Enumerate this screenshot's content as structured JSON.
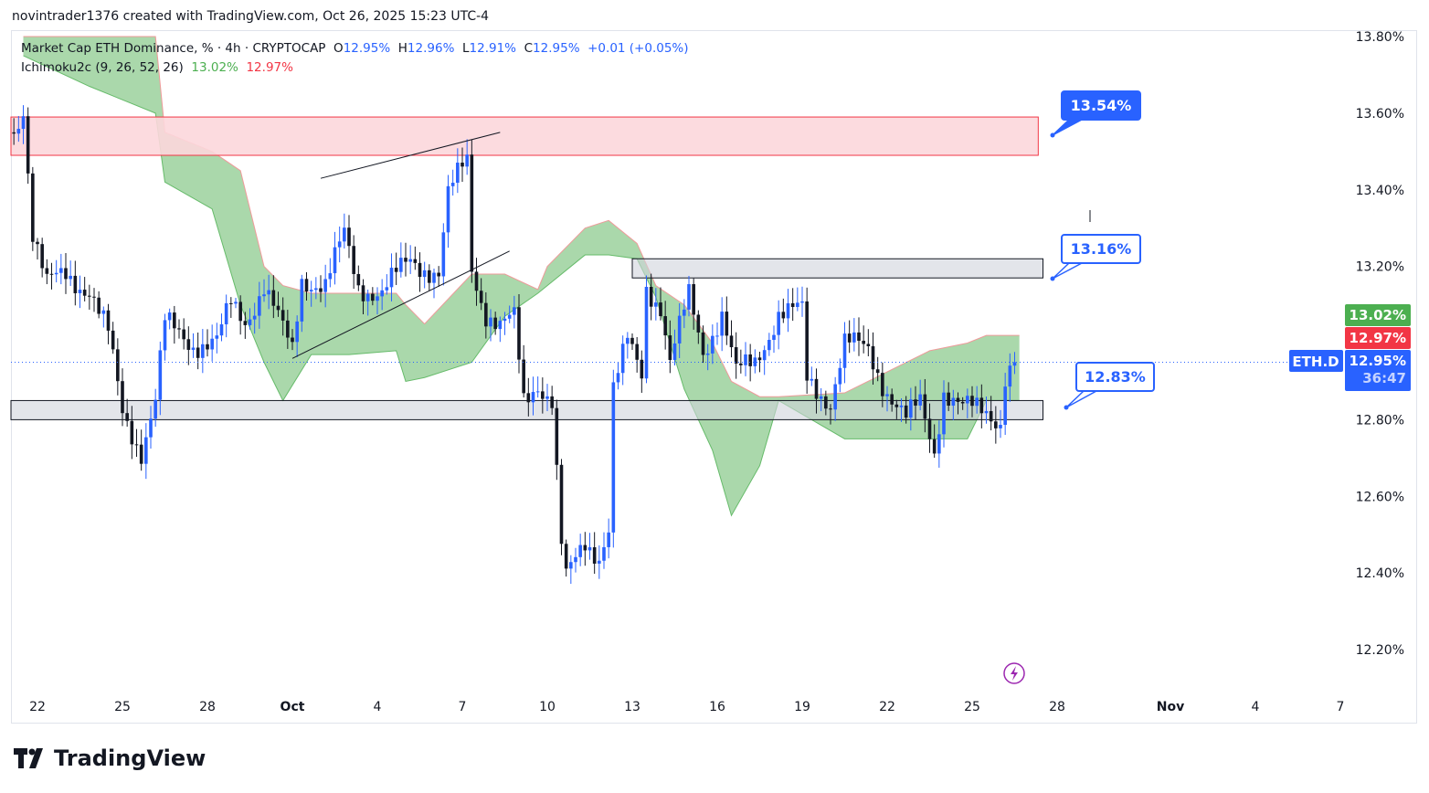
{
  "credit": "novintrader1376 created with TradingView.com, Oct 26, 2025 15:23 UTC-4",
  "legend": {
    "symbol": "Market Cap ETH Dominance, % · 4h · CRYPTOCAP",
    "o_label": "O",
    "o": "12.95%",
    "h_label": "H",
    "h": "12.96%",
    "l_label": "L",
    "l": "12.91%",
    "c_label": "C",
    "c": "12.95%",
    "change": "+0.01 (+0.05%)",
    "indicator": "Ichimoku2c (9, 26, 52, 26)",
    "ind_a": "13.02%",
    "ind_b": "12.97%"
  },
  "price_tags": {
    "span_a": "13.02%",
    "span_b": "12.97%",
    "symbol": "ETH.D",
    "last": "12.95%",
    "countdown": "36:47"
  },
  "callouts": [
    "13.54%",
    "13.16%",
    "12.83%"
  ],
  "brand": "TradingView",
  "colors": {
    "up": "#2962ff",
    "down": "#131722",
    "cloud": "#a5d6a7",
    "span_a": "#4caf50",
    "span_b": "#f23645",
    "zone_red": "#fcd7dc",
    "zone_grey": "#d1d4dc"
  },
  "chart_data": {
    "type": "candlestick",
    "interval": "4h",
    "y_ticks": [
      "13.80%",
      "13.60%",
      "13.40%",
      "13.20%",
      "12.80%",
      "12.60%",
      "12.40%",
      "12.20%"
    ],
    "x_ticks": [
      "22",
      "25",
      "28",
      "Oct",
      "4",
      "7",
      "10",
      "13",
      "16",
      "19",
      "22",
      "25",
      "28",
      "Nov",
      "4",
      "7"
    ],
    "ylim": [
      12.1,
      13.82
    ],
    "price_path": [
      [
        "2025-09-21T04",
        13.55
      ],
      [
        "2025-09-21T12",
        13.62
      ],
      [
        "2025-09-21T20",
        13.29
      ],
      [
        "2025-09-22T08",
        13.15
      ],
      [
        "2025-09-23T00",
        13.18
      ],
      [
        "2025-09-23T20",
        13.14
      ],
      [
        "2025-09-24T12",
        13.02
      ],
      [
        "2025-09-25T00",
        12.82
      ],
      [
        "2025-09-25T16",
        12.72
      ],
      [
        "2025-09-26T04",
        12.85
      ],
      [
        "2025-09-26T12",
        13.05
      ],
      [
        "2025-09-27T12",
        13.0
      ],
      [
        "2025-09-28T08",
        13.0
      ],
      [
        "2025-09-28T20",
        13.1
      ],
      [
        "2025-09-29T08",
        13.06
      ],
      [
        "2025-09-30T00",
        13.15
      ],
      [
        "2025-09-30T16",
        13.03
      ],
      [
        "2025-10-01T00",
        12.98
      ],
      [
        "2025-10-01T08",
        13.17
      ],
      [
        "2025-10-02T04",
        13.15
      ],
      [
        "2025-10-02T20",
        13.28
      ],
      [
        "2025-10-03T08",
        13.15
      ],
      [
        "2025-10-04T04",
        13.13
      ],
      [
        "2025-10-05T04",
        13.22
      ],
      [
        "2025-10-06T04",
        13.18
      ],
      [
        "2025-10-06T12",
        13.38
      ],
      [
        "2025-10-07T00",
        13.46
      ],
      [
        "2025-10-07T04",
        13.48
      ],
      [
        "2025-10-07T08",
        13.2
      ],
      [
        "2025-10-07T20",
        13.08
      ],
      [
        "2025-10-08T08",
        13.04
      ],
      [
        "2025-10-08T20",
        13.06
      ],
      [
        "2025-10-09T04",
        12.85
      ],
      [
        "2025-10-09T16",
        12.9
      ],
      [
        "2025-10-10T04",
        12.85
      ],
      [
        "2025-10-10T12",
        12.47
      ],
      [
        "2025-10-10T16",
        12.38
      ],
      [
        "2025-10-11T08",
        12.48
      ],
      [
        "2025-10-11T20",
        12.45
      ],
      [
        "2025-10-12T04",
        12.52
      ],
      [
        "2025-10-12T08",
        12.88
      ],
      [
        "2025-10-12T20",
        13.0
      ],
      [
        "2025-10-13T08",
        12.92
      ],
      [
        "2025-10-13T12",
        13.15
      ],
      [
        "2025-10-14T00",
        13.1
      ],
      [
        "2025-10-14T08",
        12.95
      ],
      [
        "2025-10-15T00",
        13.12
      ],
      [
        "2025-10-15T12",
        12.98
      ],
      [
        "2025-10-16T04",
        13.08
      ],
      [
        "2025-10-16T16",
        12.92
      ],
      [
        "2025-10-17T08",
        12.95
      ],
      [
        "2025-10-18T04",
        13.08
      ],
      [
        "2025-10-19T00",
        13.08
      ],
      [
        "2025-10-19T04",
        12.9
      ],
      [
        "2025-10-20T00",
        12.85
      ],
      [
        "2025-10-20T12",
        13.0
      ],
      [
        "2025-10-21T08",
        12.98
      ],
      [
        "2025-10-21T20",
        12.9
      ],
      [
        "2025-10-22T16",
        12.8
      ],
      [
        "2025-10-23T04",
        12.84
      ],
      [
        "2025-10-23T16",
        12.72
      ],
      [
        "2025-10-24T00",
        12.88
      ],
      [
        "2025-10-24T16",
        12.83
      ],
      [
        "2025-10-25T12",
        12.82
      ],
      [
        "2025-10-26T00",
        12.8
      ],
      [
        "2025-10-26T04",
        12.92
      ],
      [
        "2025-10-26T12",
        12.95
      ]
    ],
    "cloud": [
      [
        "2025-09-21T12",
        13.8,
        13.75
      ],
      [
        "2025-09-23T20",
        13.8,
        13.67
      ],
      [
        "2025-09-26T04",
        13.8,
        13.6
      ],
      [
        "2025-09-26T12",
        13.55,
        13.42
      ],
      [
        "2025-09-28T04",
        13.5,
        13.35
      ],
      [
        "2025-09-29T04",
        13.45,
        13.1
      ],
      [
        "2025-09-30T00",
        13.2,
        12.95
      ],
      [
        "2025-09-30T16",
        13.15,
        12.85
      ],
      [
        "2025-10-01T16",
        13.13,
        12.97
      ],
      [
        "2025-10-03T00",
        13.13,
        12.97
      ],
      [
        "2025-10-04T16",
        13.13,
        12.98
      ],
      [
        "2025-10-05T00",
        13.1,
        12.9
      ],
      [
        "2025-10-05T16",
        13.05,
        12.91
      ],
      [
        "2025-10-07T08",
        13.18,
        12.95
      ],
      [
        "2025-10-08T12",
        13.18,
        13.07
      ],
      [
        "2025-10-09T16",
        13.14,
        13.13
      ],
      [
        "2025-10-10T00",
        13.2,
        13.15
      ],
      [
        "2025-10-11T08",
        13.3,
        13.23
      ],
      [
        "2025-10-12T04",
        13.32,
        13.23
      ],
      [
        "2025-10-13T04",
        13.26,
        13.22
      ],
      [
        "2025-10-13T20",
        13.15,
        13.12
      ],
      [
        "2025-10-14T20",
        13.1,
        12.88
      ],
      [
        "2025-10-15T20",
        13.0,
        12.72
      ],
      [
        "2025-10-16T12",
        12.9,
        12.55
      ],
      [
        "2025-10-17T12",
        12.86,
        12.68
      ],
      [
        "2025-10-18T04",
        12.86,
        12.85
      ],
      [
        "2025-10-20T12",
        12.87,
        12.75
      ],
      [
        "2025-10-23T12",
        12.98,
        12.75
      ],
      [
        "2025-10-24T20",
        13.0,
        12.75
      ],
      [
        "2025-10-25T12",
        13.02,
        12.85
      ],
      [
        "2025-10-26T16",
        13.02,
        12.85
      ]
    ],
    "zones": [
      {
        "kind": "red",
        "from": "2025-09-21T00",
        "to": "2025-10-27T08",
        "top": 13.59,
        "bottom": 13.49
      },
      {
        "kind": "grey",
        "from": "2025-10-13T00",
        "to": "2025-10-27T12",
        "top": 13.22,
        "bottom": 13.17
      },
      {
        "kind": "grey",
        "from": "2025-09-21T00",
        "to": "2025-10-27T12",
        "top": 12.85,
        "bottom": 12.8
      }
    ],
    "trendlines": [
      {
        "from": [
          "2025-10-02T00",
          13.43
        ],
        "to": [
          "2025-10-08T08",
          13.55
        ]
      },
      {
        "from": [
          "2025-10-01T00",
          12.96
        ],
        "to": [
          "2025-10-08T16",
          13.24
        ]
      }
    ],
    "last_price": 12.95
  }
}
